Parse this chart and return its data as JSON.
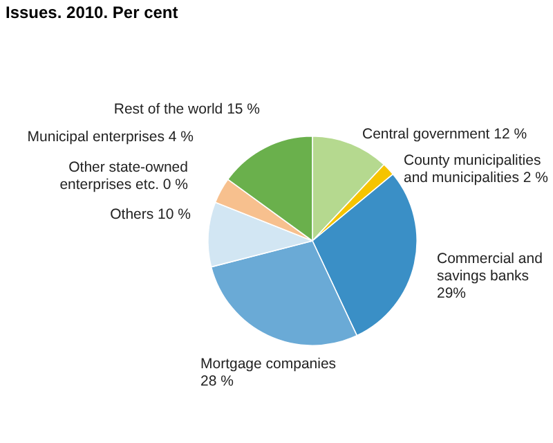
{
  "chart_data": {
    "type": "pie",
    "title": "Issues. 2010. Per cent",
    "categories": [
      "Central government",
      "County municipalities and municipalities",
      "Commercial and savings banks",
      "Mortgage companies",
      "Others",
      "Other state-owned enterprises etc.",
      "Municipal enterprises",
      "Rest of the world"
    ],
    "values": [
      12,
      2,
      29,
      28,
      10,
      0,
      4,
      15
    ],
    "value_labels": [
      "12 %",
      "2 %",
      "29%",
      "28 %",
      "10 %",
      "0 %",
      "4 %",
      "15 %"
    ],
    "colors": [
      "#b5d98f",
      "#f5c400",
      "#3a8fc6",
      "#6aaad6",
      "#d2e6f3",
      "#c0602a",
      "#f7c08e",
      "#6ab04c"
    ]
  }
}
